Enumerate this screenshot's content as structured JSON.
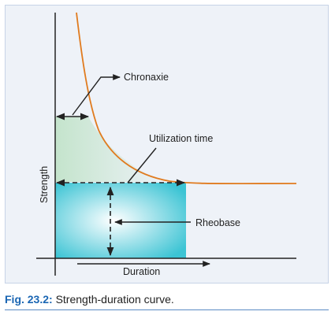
{
  "diagram": {
    "labels": {
      "chronaxie": "Chronaxie",
      "utilization_time": "Utilization time",
      "strength": "Strength",
      "rheobase": "Rheobase",
      "duration": "Duration"
    },
    "colors": {
      "curve": "#e07b1f",
      "axis": "#222222",
      "rheobase_box": "#3cc4d4",
      "chronaxie_region": "#cfe8d6",
      "frame_bg": "#eef2f8",
      "frame_border": "#c7d3e6"
    }
  },
  "caption": {
    "number": "Fig. 23.2:",
    "text": " Strength-duration curve."
  }
}
